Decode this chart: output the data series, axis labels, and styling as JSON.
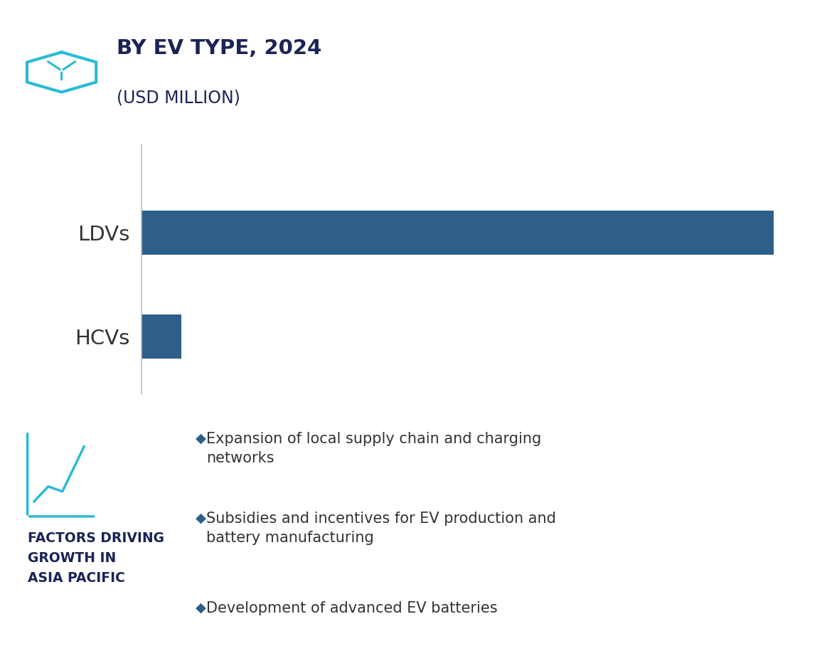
{
  "title_line1": "BY EV TYPE, 2024",
  "title_line2": "(USD MILLION)",
  "categories": [
    "LDVs",
    "HCVs"
  ],
  "values": [
    950,
    60
  ],
  "bar_color": "#2e5f8a",
  "background_color": "#ffffff",
  "bottom_panel_color": "#eaedf5",
  "title_color": "#1a2456",
  "icon_color": "#2abbd4",
  "factors_title": "FACTORS DRIVING\nGROWTH IN\nASIA PACIFIC",
  "factors_title_color": "#1a2456",
  "bullet_points": [
    "Expansion of local supply chain and charging\nnetworks",
    "Subsidies and incentives for EV production and\nbattery manufacturing",
    "Development of advanced EV batteries"
  ],
  "bullet_color": "#2e5f8a",
  "bullet_text_color": "#333333",
  "ylabel_color": "#333333",
  "axis_color": "#bbbbbb",
  "xlim": [
    0,
    1000
  ],
  "figwidth": 11.7,
  "figheight": 9.22,
  "dpi": 100
}
